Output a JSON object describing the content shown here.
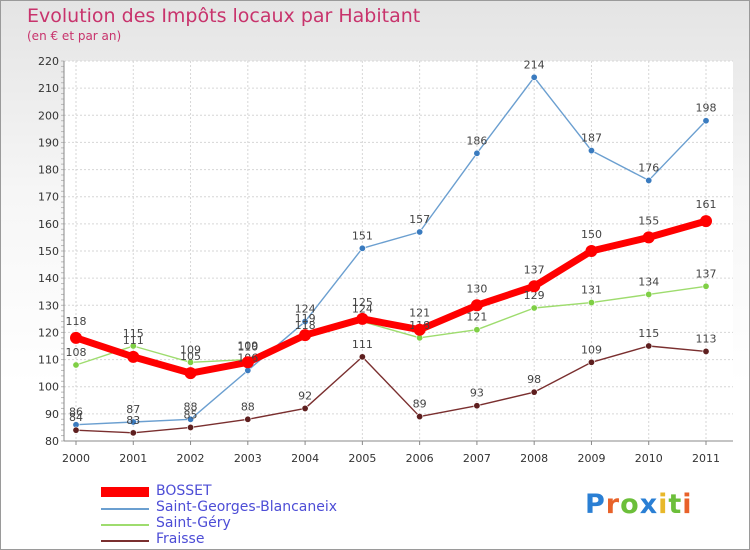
{
  "chart_data": {
    "type": "line",
    "title": "Evolution des Impôts locaux par Habitant",
    "subtitle": "(en € et par an)",
    "xlabel": "",
    "ylabel": "",
    "x": [
      "2000",
      "2001",
      "2002",
      "2003",
      "2004",
      "2005",
      "2006",
      "2007",
      "2008",
      "2009",
      "2010",
      "2011"
    ],
    "ylim": [
      80,
      220
    ],
    "yticks": [
      "80",
      "90",
      "100",
      "110",
      "120",
      "130",
      "140",
      "150",
      "160",
      "170",
      "180",
      "190",
      "200",
      "210",
      "220"
    ],
    "grid": true,
    "legend_position": "bottom-left",
    "series": [
      {
        "name": "Saint-Georges-Blancaneix",
        "color": "#6b9fd0",
        "marker_color": "#3a7bbf",
        "values": [
          86,
          87,
          88,
          106,
          124,
          151,
          157,
          186,
          214,
          187,
          176,
          198
        ],
        "labels": [
          "86",
          "87",
          "88",
          "106",
          "124",
          "151",
          "157",
          "186",
          "214",
          "187",
          "176",
          "198"
        ]
      },
      {
        "name": "Saint-Géry",
        "color": "#9edc6e",
        "marker_color": "#7fcf45",
        "values": [
          108,
          115,
          109,
          110,
          118,
          124,
          118,
          121,
          129,
          131,
          134,
          137
        ],
        "labels": [
          "108",
          "115",
          "109",
          "110",
          "118",
          "124",
          "118",
          "121",
          "129",
          "131",
          "134",
          "137"
        ]
      },
      {
        "name": "Fraisse",
        "color": "#7a2f2f",
        "marker_color": "#5e1f1f",
        "values": [
          84,
          83,
          85,
          88,
          92,
          111,
          89,
          93,
          98,
          109,
          115,
          113
        ],
        "labels": [
          "84",
          "83",
          "85",
          "88",
          "92",
          "111",
          "89",
          "93",
          "98",
          "109",
          "115",
          "113"
        ]
      },
      {
        "name": "BOSSET",
        "color": "#ff0000",
        "marker_color": "#ff0000",
        "values": [
          118,
          111,
          105,
          109,
          119,
          125,
          121,
          130,
          137,
          150,
          155,
          161
        ],
        "labels": [
          "118",
          "111",
          "105",
          "109",
          "119",
          "125",
          "121",
          "130",
          "137",
          "150",
          "155",
          "161"
        ]
      }
    ],
    "legend": [
      "BOSSET",
      "Saint-Georges-Blancaneix",
      "Saint-Géry",
      "Fraisse"
    ]
  },
  "logo": {
    "text": "Proxiti",
    "letters": [
      "P",
      "r",
      "o",
      "x",
      "i",
      "t",
      "i"
    ],
    "colors": [
      "#2a7fd4",
      "#e8622a",
      "#6cbf3a",
      "#2a7fd4",
      "#e8b82a",
      "#6cbf3a",
      "#e8622a"
    ]
  }
}
